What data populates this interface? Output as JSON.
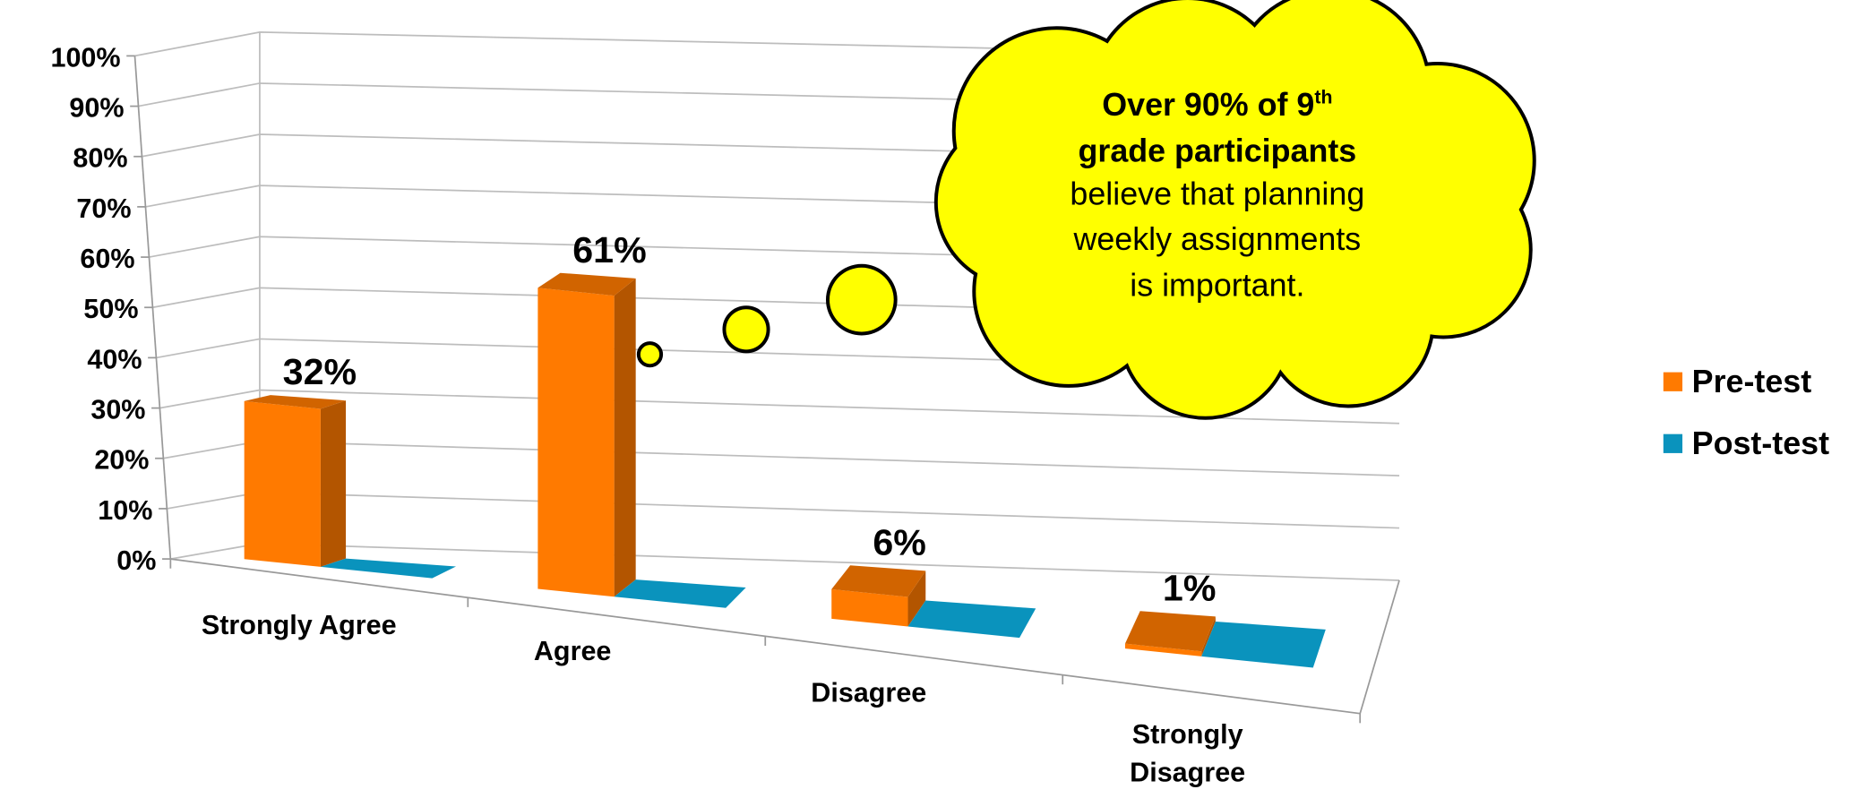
{
  "chart_data": {
    "type": "bar3d",
    "categories": [
      "Strongly Agree",
      "Agree",
      "Disagree",
      "Strongly Disagree"
    ],
    "series": [
      {
        "name": "Pre-test",
        "color": "#ff7a00",
        "values": [
          32,
          61,
          6,
          1
        ],
        "value_labels": [
          "32%",
          "61%",
          "6%",
          "1%"
        ]
      },
      {
        "name": "Post-test",
        "color": "#0a93bd",
        "values": [
          0,
          0,
          0,
          0
        ]
      }
    ],
    "ylim": [
      0,
      100
    ],
    "yticks": [
      {
        "value": 0,
        "label": "0%"
      },
      {
        "value": 10,
        "label": "10%"
      },
      {
        "value": 20,
        "label": "20%"
      },
      {
        "value": 30,
        "label": "30%"
      },
      {
        "value": 40,
        "label": "40%"
      },
      {
        "value": 50,
        "label": "50%"
      },
      {
        "value": 60,
        "label": "60%"
      },
      {
        "value": 70,
        "label": "70%"
      },
      {
        "value": 80,
        "label": "80%"
      },
      {
        "value": 90,
        "label": "90%"
      },
      {
        "value": 100,
        "label": "100%"
      }
    ],
    "grid": true,
    "legend": "right",
    "annotation": {
      "bold_start": "Over 90% of 9",
      "superscript": "th",
      "bold_end": "grade participants",
      "line3": "believe that planning",
      "line4": "weekly assignments",
      "line5": "is important."
    }
  }
}
